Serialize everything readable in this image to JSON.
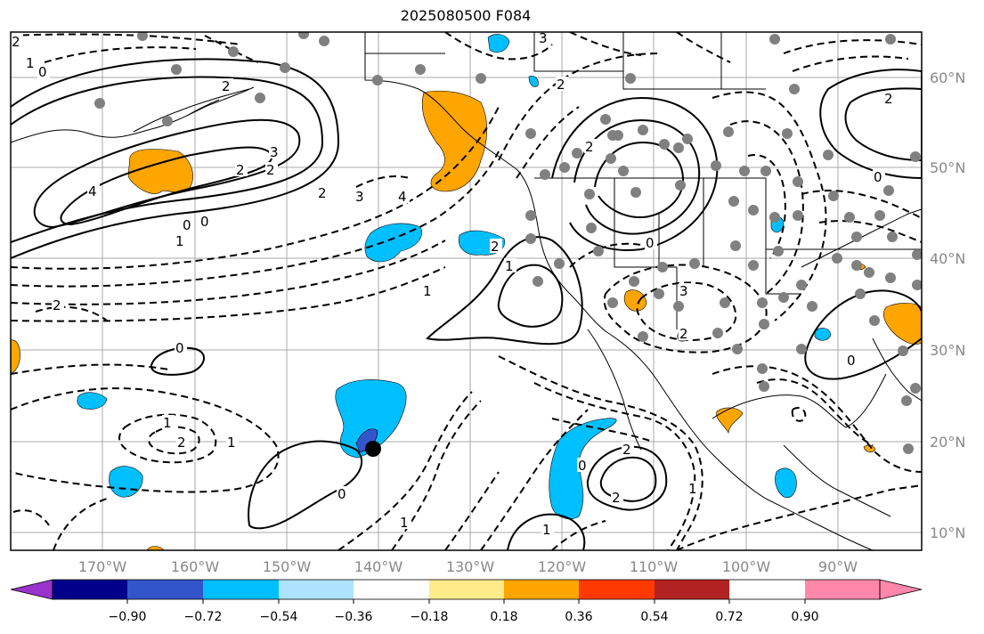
{
  "title": "2025080500 F084",
  "map": {
    "lon_labels": [
      "170°W",
      "160°W",
      "150°W",
      "140°W",
      "130°W",
      "120°W",
      "110°W",
      "100°W",
      "90°W"
    ],
    "lat_labels": [
      "60°N",
      "50°N",
      "40°N",
      "30°N",
      "20°N",
      "10°N"
    ],
    "marker_color": "#000000",
    "station_color": "#808080"
  },
  "colorbar": {
    "tick_labels": [
      "−0.90",
      "−0.72",
      "−0.54",
      "−0.36",
      "−0.18",
      "0.18",
      "0.36",
      "0.54",
      "0.72",
      "0.90"
    ],
    "colors": [
      "#9933cc",
      "#00008b",
      "#3355cc",
      "#00bfff",
      "#aee3ff",
      "#ffffff",
      "#ffeb8a",
      "#ffa500",
      "#ff3a00",
      "#b22222",
      "#ff88aa"
    ]
  },
  "contour_labels": [
    "2",
    "0",
    "1",
    "4",
    "2",
    "3",
    "2",
    "3",
    "2",
    "4",
    "0",
    "2",
    "1",
    "0",
    "1",
    "2",
    "0",
    "1",
    "2",
    "1",
    "0",
    "2",
    "1",
    "1",
    "3",
    "2",
    "0",
    "2",
    "2",
    "0",
    "2",
    "3",
    "2",
    "1",
    "2",
    "0",
    "0",
    "1"
  ]
}
